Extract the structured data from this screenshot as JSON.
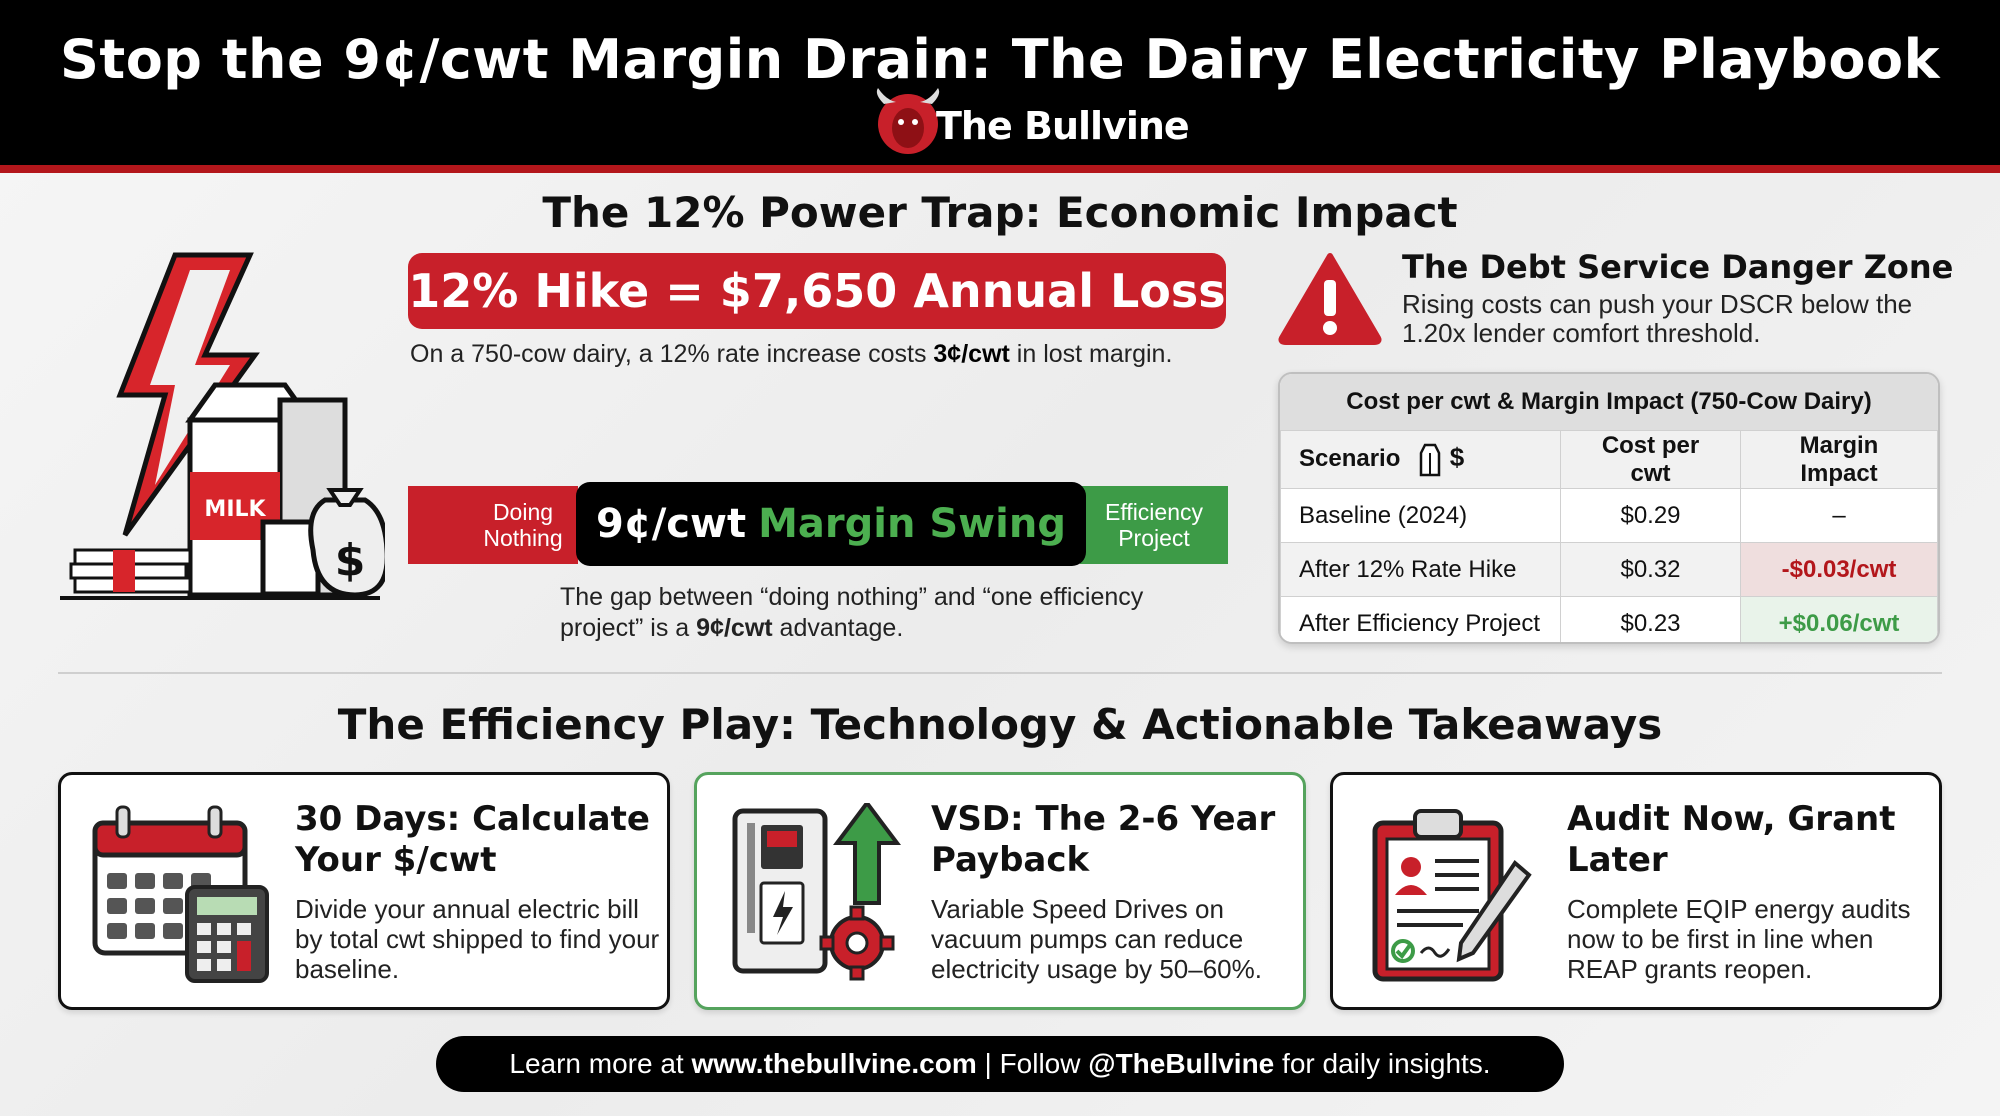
{
  "header": {
    "title": "Stop the 9¢/cwt Margin Drain: The Dairy Electricity Playbook",
    "brand": "The Bullvine"
  },
  "section1": {
    "title": "The 12% Power Trap: Economic Impact",
    "hike_banner": "12% Hike = $7,650 Annual Loss",
    "hike_caption_pre": "On a 750-cow dairy, a 12% rate increase costs ",
    "hike_caption_bold": "3¢/cwt",
    "hike_caption_post": " in lost margin.",
    "swing_left": "Doing Nothing",
    "swing_value": "9¢/cwt",
    "swing_label": "Margin Swing",
    "swing_right": "Efficiency Project",
    "swing_caption_pre": "The gap between “doing nothing” and “one efficiency project” is a ",
    "swing_caption_bold": "9¢/cwt",
    "swing_caption_post": " advantage.",
    "milk_label": "MILK"
  },
  "debt": {
    "title": "The Debt Service Danger Zone",
    "text": "Rising costs can push your DSCR below the 1.20x lender comfort threshold."
  },
  "table": {
    "caption": "Cost per cwt & Margin Impact (750-Cow Dairy)",
    "headers": [
      "Scenario",
      "Cost per cwt",
      "Margin Impact"
    ],
    "rows": [
      {
        "scenario": "Baseline (2024)",
        "cost": "$0.29",
        "impact": "–"
      },
      {
        "scenario": "After 12% Rate Hike",
        "cost": "$0.32",
        "impact": "-$0.03/cwt"
      },
      {
        "scenario": "After Efficiency Project",
        "cost": "$0.23",
        "impact": "+$0.06/cwt"
      }
    ]
  },
  "section2": {
    "title": "The Efficiency Play: Technology & Actionable Takeaways",
    "cards": [
      {
        "title": "30 Days: Calculate Your $/cwt",
        "text": "Divide your annual electric bill by total cwt shipped to find your baseline."
      },
      {
        "title": "VSD: The 2-6 Year Payback",
        "text": "Variable Speed Drives on vacuum pumps can reduce electricity usage by 50–60%."
      },
      {
        "title": "Audit Now, Grant Later",
        "text": "Complete EQIP energy audits now to be first in line when REAP grants reopen."
      }
    ]
  },
  "footer": {
    "pre": "Learn more at ",
    "site": "www.thebullvine.com",
    "mid": " | Follow ",
    "handle": "@TheBullvine",
    "post": " for daily insights."
  },
  "colors": {
    "accent_red": "#c8202a",
    "accent_green": "#3d9b47",
    "header_bg": "#000000"
  }
}
